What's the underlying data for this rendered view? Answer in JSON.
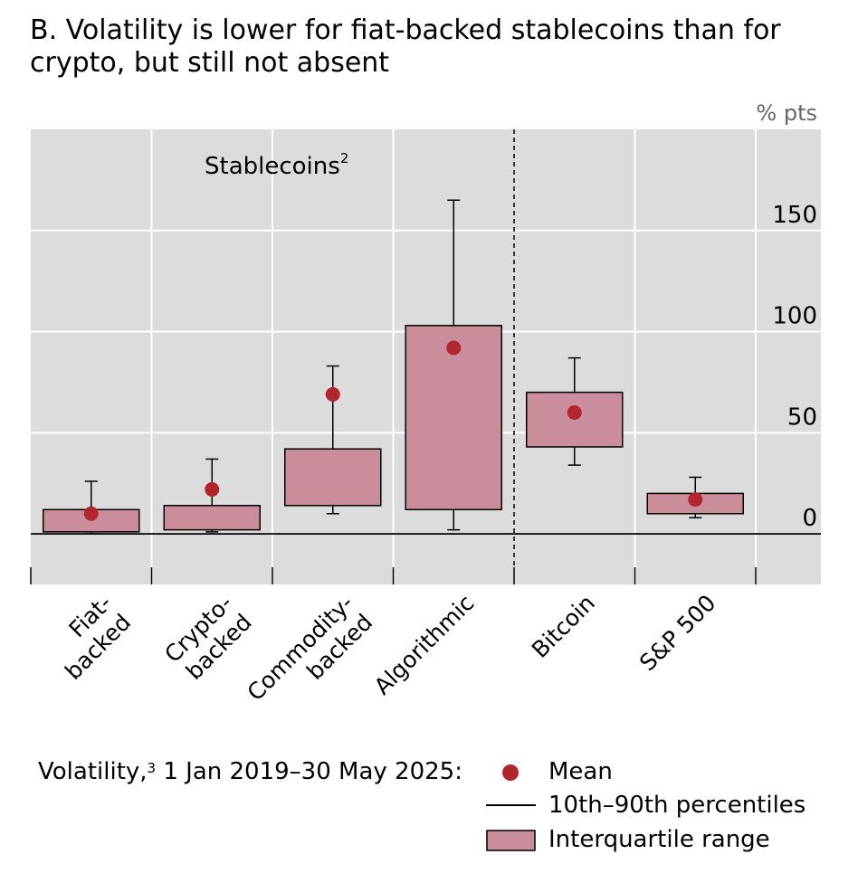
{
  "title": "B. Volatility is lower for fiat-backed stablecoins than for crypto, but still not absent",
  "chart_data": {
    "type": "box",
    "unit_label": "% pts",
    "yticks": [
      0,
      50,
      100,
      150
    ],
    "ylim": [
      -25,
      200
    ],
    "group_label": "Stablecoins",
    "group_label_sup": "2",
    "categories": [
      {
        "label": [
          "Fiat-",
          "backed"
        ],
        "p10": 0,
        "q1": 1,
        "q3": 12,
        "p90": 26,
        "mean": 10
      },
      {
        "label": [
          "Crypto-",
          "backed"
        ],
        "p10": 1,
        "q1": 2,
        "q3": 14,
        "p90": 37,
        "mean": 22
      },
      {
        "label": [
          "Commodity-",
          "backed"
        ],
        "p10": 10,
        "q1": 14,
        "q3": 42,
        "p90": 83,
        "mean": 69
      },
      {
        "label": [
          "Algorithmic"
        ],
        "p10": 2,
        "q1": 12,
        "q3": 103,
        "p90": 165,
        "mean": 92
      },
      {
        "label": [
          "Bitcoin"
        ],
        "p10": 34,
        "q1": 43,
        "q3": 70,
        "p90": 87,
        "mean": 60
      },
      {
        "label": [
          "S&P 500"
        ],
        "p10": 8,
        "q1": 10,
        "q3": 20,
        "p90": 28,
        "mean": 17
      }
    ],
    "separator_after_index": 3,
    "colors": {
      "box": "#c98d9b",
      "mean": "#b1262d",
      "grid": "#ffffff",
      "panel": "#dcdcdc"
    }
  },
  "legend": {
    "prefix": "Volatility,",
    "prefix_sup": "3",
    "period": "1 Jan 2019–30 May 2025:",
    "mean": "Mean",
    "percentiles": "10th–90th percentiles",
    "iqr": "Interquartile range"
  }
}
